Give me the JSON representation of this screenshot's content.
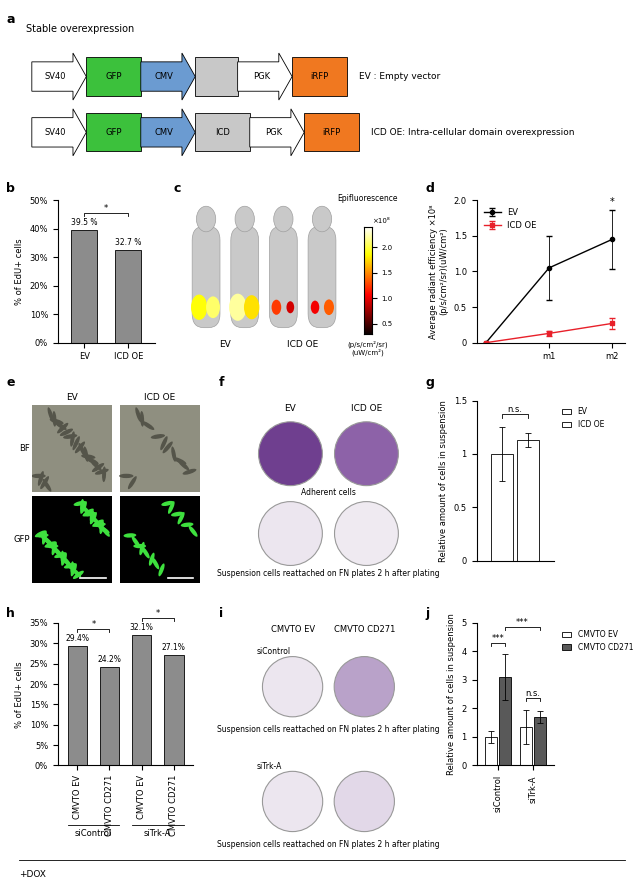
{
  "diagram": {
    "panel": "a",
    "title": "Stable overexpression",
    "rows": [
      {
        "elements": [
          {
            "kind": "promoter",
            "text": "SV40",
            "color": "#ffffff"
          },
          {
            "kind": "gene",
            "text": "GFP",
            "color": "#3cc13c"
          },
          {
            "kind": "promoter",
            "text": "CMV",
            "color": "#6b9bd1"
          },
          {
            "kind": "insert",
            "color": "#c8c8c8"
          },
          {
            "kind": "promoter",
            "text": "PGK",
            "color": "#ffffff"
          },
          {
            "kind": "gene",
            "text": "iRFP",
            "color": "#f07820"
          }
        ],
        "label": "EV : Empty vector"
      },
      {
        "elements": [
          {
            "kind": "promoter",
            "text": "SV40",
            "color": "#ffffff"
          },
          {
            "kind": "gene",
            "text": "GFP",
            "color": "#3cc13c"
          },
          {
            "kind": "promoter",
            "text": "CMV",
            "color": "#6b9bd1"
          },
          {
            "kind": "gene",
            "text": "ICD",
            "color": "#c8c8c8"
          },
          {
            "kind": "promoter",
            "text": "PGK",
            "color": "#ffffff"
          },
          {
            "kind": "gene",
            "text": "iRFP",
            "color": "#f07820"
          }
        ],
        "label": "ICD OE: Intra-cellular domain overexpression"
      }
    ]
  },
  "images": [
    {
      "panel": "c",
      "labels": [
        "EV",
        "ICD OE"
      ],
      "colorbar": {
        "title": "Epifluorescence",
        "range": [
          0.3,
          2.4
        ],
        "ticks": [
          0.5,
          {
            "value": 1.0,
            "label": "1.0"
          },
          1.5,
          {
            "value": 2.0,
            "label": "2.0"
          }
        ],
        "multiplier": "×10⁸",
        "unit_lines": [
          "(p/s/cm²/sr)",
          "(uW/cm²)"
        ]
      }
    },
    {
      "panel": "e",
      "columns": [
        "EV",
        "ICD OE"
      ],
      "rows": [
        "BF",
        "GFP"
      ]
    },
    {
      "panel": "f",
      "columns": [
        "EV",
        "ICD OE"
      ],
      "rows": [
        "Adherent cells",
        "Suspension cells reattached on FN plates 2 h after plating"
      ]
    },
    {
      "panel": "i",
      "columns": [
        "CMVTO EV",
        "CMVTO CD271"
      ],
      "rows": [
        {
          "label": "siControl",
          "caption": "Suspension cells reattached on FN plates 2 h after plating"
        },
        {
          "label": "siTrk-A",
          "caption": "Suspension cells reattached on FN plates 2 h after plating"
        }
      ]
    }
  ],
  "chart_data": [
    {
      "panel": "b",
      "type": "bar",
      "categories": [
        "EV",
        "ICD OE"
      ],
      "values": [
        39.5,
        32.7
      ],
      "value_labels": [
        "39.5 %",
        "32.7 %"
      ],
      "data_labels": true,
      "color": "#8c8c8c",
      "ylabel": "% of EdU+ cells",
      "ylim": [
        0,
        50
      ],
      "yticks": [
        {
          "value": 0,
          "label": "0%"
        },
        {
          "value": 10,
          "label": "10%"
        },
        {
          "value": 20,
          "label": "20%"
        },
        {
          "value": 30,
          "label": "30%"
        },
        {
          "value": 40,
          "label": "40%"
        },
        {
          "value": 50,
          "label": "50%"
        }
      ],
      "comparisons": [
        {
          "pair": [
            0,
            1
          ],
          "text": "*"
        }
      ]
    },
    {
      "panel": "d",
      "type": "line",
      "categories": [
        null,
        "m1",
        "m2"
      ],
      "series": [
        {
          "name": "EV",
          "color": "#000000",
          "marker": "circle",
          "values": [
            0,
            1.05,
            1.45
          ],
          "errors": [
            0,
            0.45,
            0.41
          ]
        },
        {
          "name": "ICD OE",
          "color": "#e8202a",
          "marker": "square",
          "values": [
            0,
            0.13,
            0.27
          ],
          "errors": [
            0,
            0.03,
            0.08
          ]
        }
      ],
      "ylabel": "Average radiant efficiency ×10⁸\n(p/s/cm²/sr)(uW/cm²)",
      "ylim": [
        0,
        2.0
      ],
      "yticks": [
        0,
        0.5,
        {
          "value": 1.0,
          "label": "1.0"
        },
        1.5,
        {
          "value": 2.0,
          "label": "2.0"
        }
      ],
      "legend": "upper left",
      "annotations": [
        {
          "text": "*",
          "category": "m2"
        }
      ]
    },
    {
      "panel": "g",
      "type": "bar",
      "series": [
        {
          "name": "EV",
          "color": "#ffffff",
          "values": [
            1.0
          ],
          "errors": [
            0.25
          ]
        },
        {
          "name": "ICD OE",
          "color": "#ffffff",
          "values": [
            1.13
          ],
          "errors": [
            0.07
          ]
        }
      ],
      "ylabel": "Relative amount of cells in suspension",
      "ylim": [
        0,
        1.5
      ],
      "yticks": [
        0,
        0.5,
        1,
        1.5
      ],
      "legend": "upper left",
      "tick_labels": "y",
      "comparisons": [
        {
          "pair": [
            0,
            1
          ],
          "text": "n.s."
        }
      ]
    },
    {
      "panel": "h",
      "type": "bar",
      "categories": [
        "CMVTO EV",
        "CMVTO CD271",
        "CMVTO EV",
        "CMVTO CD271"
      ],
      "values": [
        29.4,
        24.2,
        32.1,
        27.1
      ],
      "value_labels": [
        "29.4%",
        "24.2%",
        "32.1%",
        "27.1%"
      ],
      "data_labels": true,
      "color": "#8c8c8c",
      "ylabel": "% of EdU+ cells",
      "ylim": [
        0,
        35
      ],
      "yticks": [
        {
          "value": 0,
          "label": "0%"
        },
        {
          "value": 5,
          "label": "5%"
        },
        {
          "value": 10,
          "label": "10%"
        },
        {
          "value": 15,
          "label": "15%"
        },
        {
          "value": 20,
          "label": "20%"
        },
        {
          "value": 25,
          "label": "25%"
        },
        {
          "value": 30,
          "label": "30%"
        },
        {
          "value": 35,
          "label": "35%"
        }
      ],
      "groups": [
        {
          "label": "siControl",
          "members": [
            0,
            1
          ]
        },
        {
          "label": "siTrk-A",
          "members": [
            2,
            3
          ]
        }
      ],
      "comparisons": [
        {
          "pair": [
            0,
            1
          ],
          "text": "*"
        },
        {
          "pair": [
            2,
            3
          ],
          "text": "*"
        }
      ]
    },
    {
      "panel": "j",
      "type": "bar",
      "categories": [
        "siControl",
        "siTrk-A"
      ],
      "series": [
        {
          "name": "CMVTO EV",
          "color": "#ffffff",
          "values": [
            1.0,
            1.35
          ],
          "errors": [
            0.2,
            0.6
          ]
        },
        {
          "name": "CMVTO CD271",
          "color": "#595959",
          "values": [
            3.1,
            1.7
          ],
          "errors": [
            0.8,
            0.2
          ]
        }
      ],
      "ylabel": "Relative amount of cells in suspension",
      "ylim": [
        0,
        5
      ],
      "yticks": [
        0,
        1,
        2,
        3,
        4,
        5
      ],
      "legend": "upper left",
      "comparisons": [
        {
          "pair": [
            0,
            1
          ],
          "text": "***"
        },
        {
          "pair": [
            1,
            3
          ],
          "text": "***"
        },
        {
          "pair": [
            2,
            3
          ],
          "text": "n.s."
        }
      ]
    }
  ],
  "footer": "+DOX"
}
